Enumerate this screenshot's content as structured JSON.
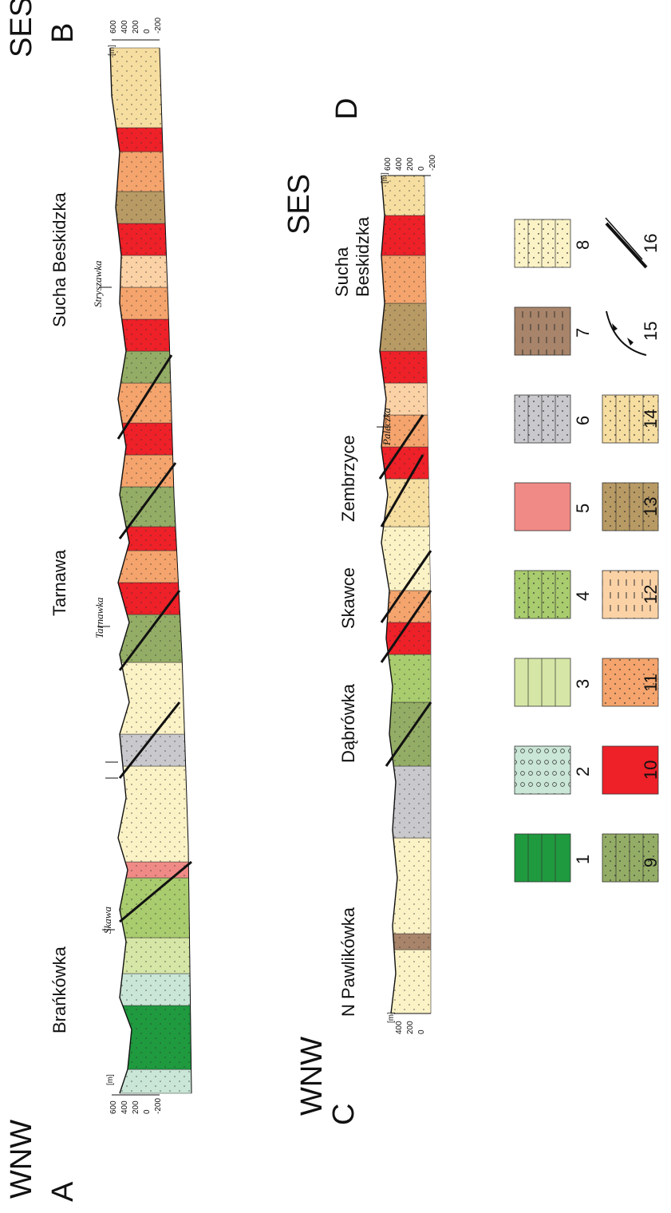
{
  "section_AB": {
    "start_letter": "A",
    "end_letter": "B",
    "left_direction": "WNW",
    "right_direction": "SES",
    "scale_unit": "[m]",
    "scale_ticks": [
      "600",
      "400",
      "200",
      "0",
      "-200"
    ],
    "places": [
      "Brańkówka",
      "Tarnawa",
      "Sucha Beskidzka"
    ],
    "rivers": [
      "Skawa",
      "Tarnawka",
      "Stryszawka"
    ]
  },
  "section_CD": {
    "start_letter": "C",
    "end_letter": "D",
    "left_direction": "WNW",
    "right_direction": "SES",
    "scale_unit": "[m]",
    "scale_ticks_left": [
      "400",
      "200",
      "0"
    ],
    "scale_ticks_right": [
      "600",
      "400",
      "200",
      "0",
      "-200"
    ],
    "places": [
      "N Pawlikówka",
      "Dąbrówka",
      "Skawce",
      "Zembrzyce",
      "Sucha",
      "Beskidzka"
    ],
    "rivers": [
      "Paleczka"
    ]
  },
  "legend": [
    {
      "num": "1",
      "color": "#1f9a3f",
      "pattern": "lines"
    },
    {
      "num": "2",
      "color": "#c9e6d6",
      "pattern": "circles"
    },
    {
      "num": "3",
      "color": "#d6e6a6",
      "pattern": "lines"
    },
    {
      "num": "4",
      "color": "#a9cc6e",
      "pattern": "dotted-lines"
    },
    {
      "num": "5",
      "color": "#f08a86",
      "pattern": "plain"
    },
    {
      "num": "6",
      "color": "#c9c9cd",
      "pattern": "dotted-lines"
    },
    {
      "num": "7",
      "color": "#a8846a",
      "pattern": "dashes"
    },
    {
      "num": "8",
      "color": "#fbf2c6",
      "pattern": "dotted-lines"
    },
    {
      "num": "9",
      "color": "#94ad66",
      "pattern": "dotted-lines"
    },
    {
      "num": "10",
      "color": "#ee2028",
      "pattern": "plain"
    },
    {
      "num": "11",
      "color": "#f4a46c",
      "pattern": "dots"
    },
    {
      "num": "12",
      "color": "#fbd2a6",
      "pattern": "dashes"
    },
    {
      "num": "13",
      "color": "#b89a64",
      "pattern": "dotted-lines"
    },
    {
      "num": "14",
      "color": "#f6dda0",
      "pattern": "dotted-lines"
    },
    {
      "num": "15",
      "color": "#000000",
      "pattern": "thrust-symbol"
    },
    {
      "num": "16",
      "color": "#000000",
      "pattern": "fault-symbol"
    }
  ]
}
